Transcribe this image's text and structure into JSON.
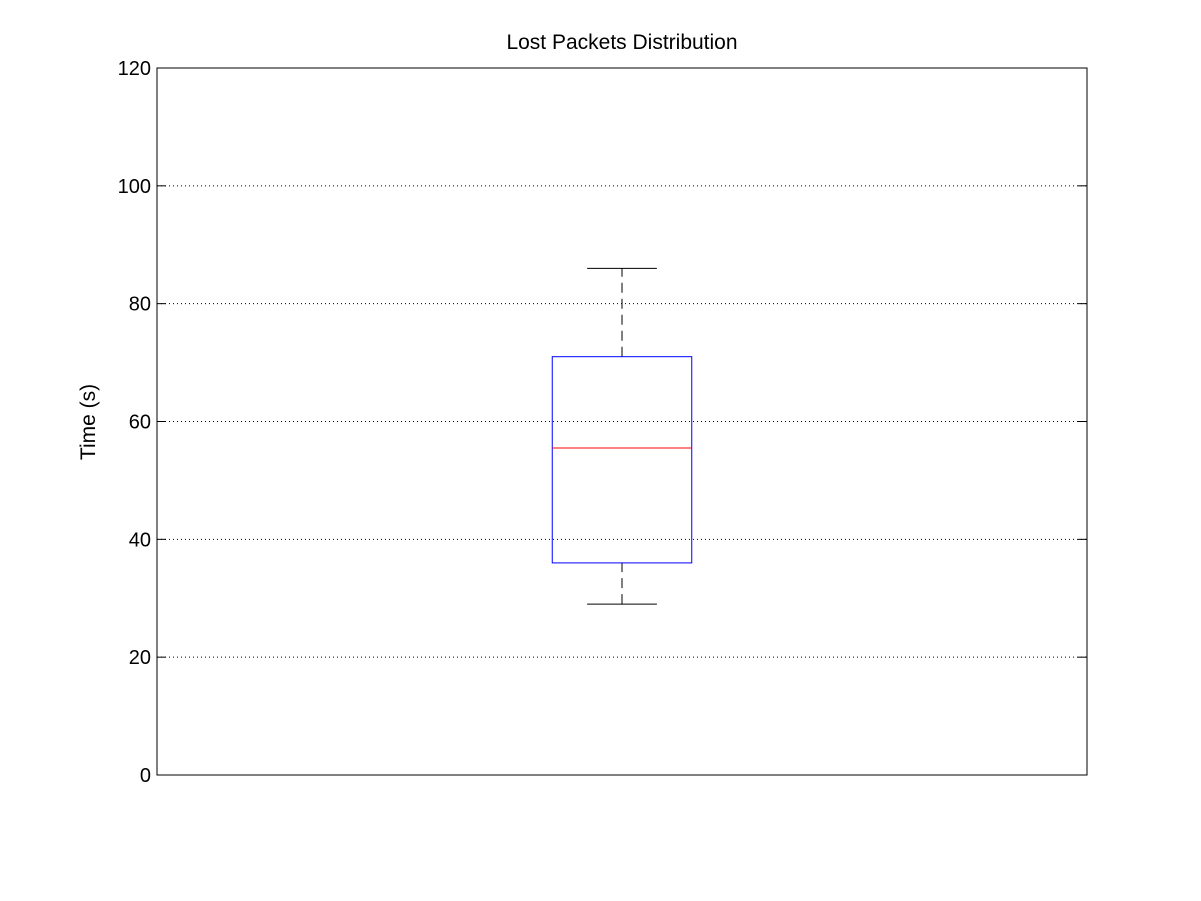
{
  "chart_data": {
    "type": "box",
    "title": "Lost Packets Distribution",
    "xlabel": "",
    "ylabel": "Time (s)",
    "ylim": [
      0,
      120
    ],
    "yticks": [
      0,
      20,
      40,
      60,
      80,
      100,
      120
    ],
    "grid": "horizontal-dotted",
    "categories": [
      ""
    ],
    "boxes": [
      {
        "whisker_low": 29,
        "q1": 36,
        "median": 55.5,
        "q3": 71,
        "whisker_high": 86
      }
    ],
    "colors": {
      "box": "#0000ff",
      "median": "#ff0000",
      "whisker": "#000000",
      "grid": "#000000",
      "axes": "#000000"
    }
  }
}
